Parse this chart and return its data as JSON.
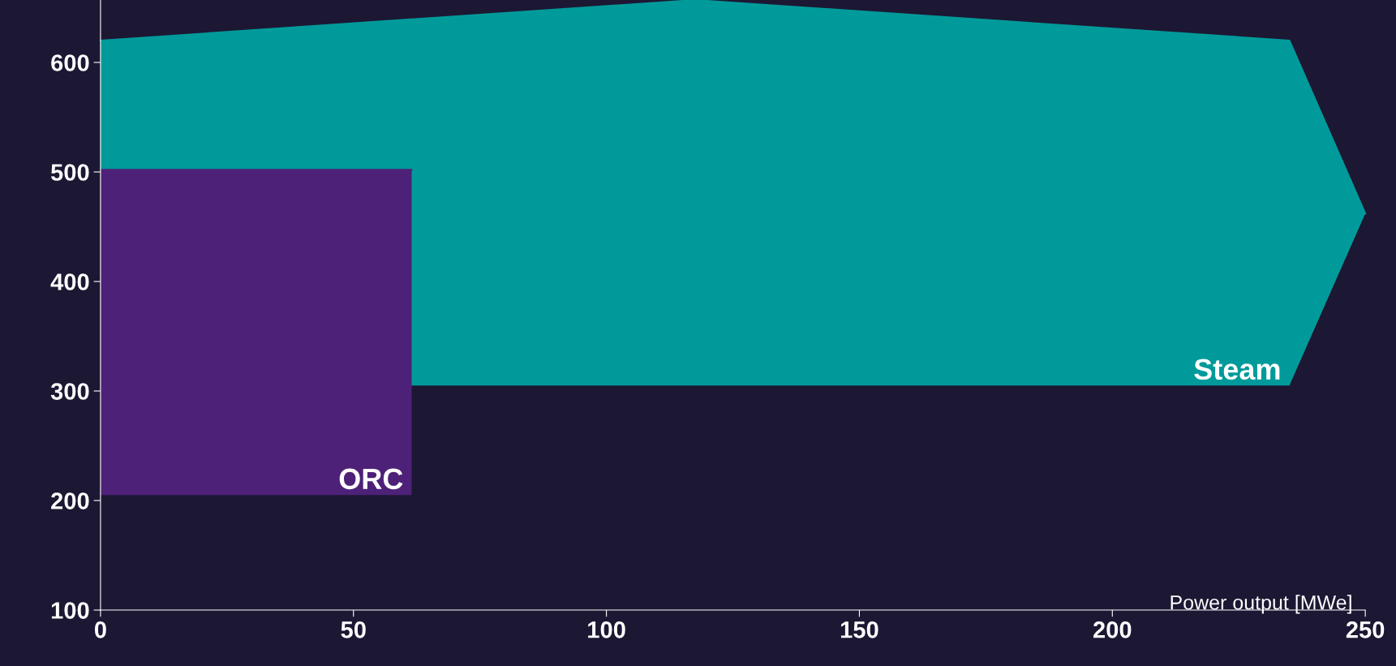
{
  "chart_data": {
    "type": "line",
    "xlabel": "Power output [MWe]",
    "series": [
      {
        "color": "#019a9a",
        "x": [
          0,
          117.5,
          235,
          250
        ],
        "values": [
          620,
          657,
          620,
          462
        ],
        "upper": [
          620,
          657,
          620,
          462
        ],
        "lower": [
          305,
          305,
          305,
          462
        ]
      },
      {
        "color": "#4e2178",
        "x": [
          0,
          61.5
        ],
        "values": [
          502,
          502
        ],
        "upper": [
          502,
          502
        ],
        "lower": [
          205,
          205
        ]
      }
    ],
    "annotations": [
      {
        "text": "Steam",
        "x": 235,
        "y": 305
      },
      {
        "text": "ORC",
        "x": 61.5,
        "y": 205
      }
    ],
    "xlim": [
      0,
      250
    ],
    "xticks": [
      0,
      50,
      100,
      150,
      200,
      250
    ],
    "ylim": [
      100,
      657
    ],
    "yticks": [
      100,
      200,
      300,
      400,
      500,
      600
    ],
    "grid": false,
    "legend": false
  }
}
